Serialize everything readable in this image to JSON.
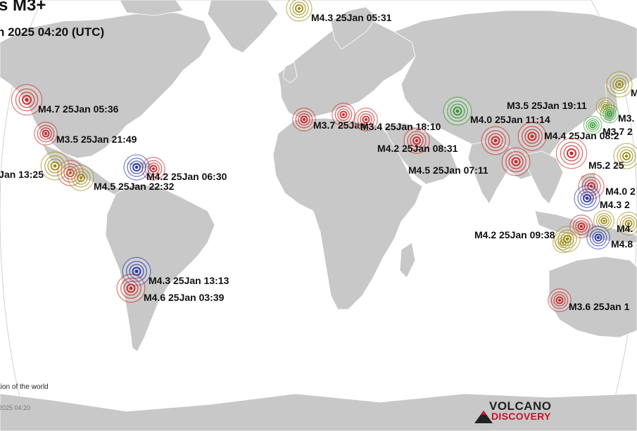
{
  "header": {
    "title": "s M3+",
    "subtitle": "n 2025 04:20 (UTC)"
  },
  "footer": {
    "caption": "tion of the world",
    "timestamp": "2025 04:20"
  },
  "logo": {
    "line1": "VOLCANO",
    "line2": "DISCOVERY"
  },
  "legend_colors": {
    "red": "#cc2222",
    "green": "#2a9a2a",
    "blue": "#2233aa",
    "olive": "#9a8a10",
    "land": "#c8c8c8",
    "ocean": "#ffffff"
  },
  "quakes": [
    {
      "label": "M4.3 25Jan 05:31",
      "color": "olive"
    },
    {
      "label": "M4.7 25Jan 05:36",
      "color": "red"
    },
    {
      "label": "M3.5 25Jan 21:49",
      "color": "red"
    },
    {
      "label": "Jan 13:25",
      "color": "olive"
    },
    {
      "label": "M4.2 25Jan 06:30",
      "color": "blue"
    },
    {
      "label": "M4.5 25Jan 22:32",
      "color": "olive"
    },
    {
      "label": "M4.3 25Jan 13:13",
      "color": "blue"
    },
    {
      "label": "M4.6 25Jan 03:39",
      "color": "red"
    },
    {
      "label": "M3.7 25Jan",
      "color": "red"
    },
    {
      "label": "M3.4 25Jan 18:10",
      "color": "red"
    },
    {
      "label": "M4.0 25Jan 11:14",
      "color": "green"
    },
    {
      "label": "M4.2 25Jan 08:31",
      "color": "red"
    },
    {
      "label": "M4.5 25Jan 07:11",
      "color": "red"
    },
    {
      "label": "M4.4 25Jan 08:2",
      "color": "red"
    },
    {
      "label": "M3.5 25Jan 19:11",
      "color": "olive"
    },
    {
      "label": "M5.2 25",
      "color": "red"
    },
    {
      "label": "M4.0 2",
      "color": "red"
    },
    {
      "label": "M4.3 2",
      "color": "blue"
    },
    {
      "label": "M4.2 25Jan 09:38",
      "color": "olive"
    },
    {
      "label": "M4.",
      "color": "olive"
    },
    {
      "label": "M4.8",
      "color": "blue"
    },
    {
      "label": "M3.6 25Jan 1",
      "color": "red"
    },
    {
      "label": "M3.",
      "color": "green"
    },
    {
      "label": "M3.7 2",
      "color": "green"
    },
    {
      "label": "M",
      "color": "olive"
    }
  ]
}
